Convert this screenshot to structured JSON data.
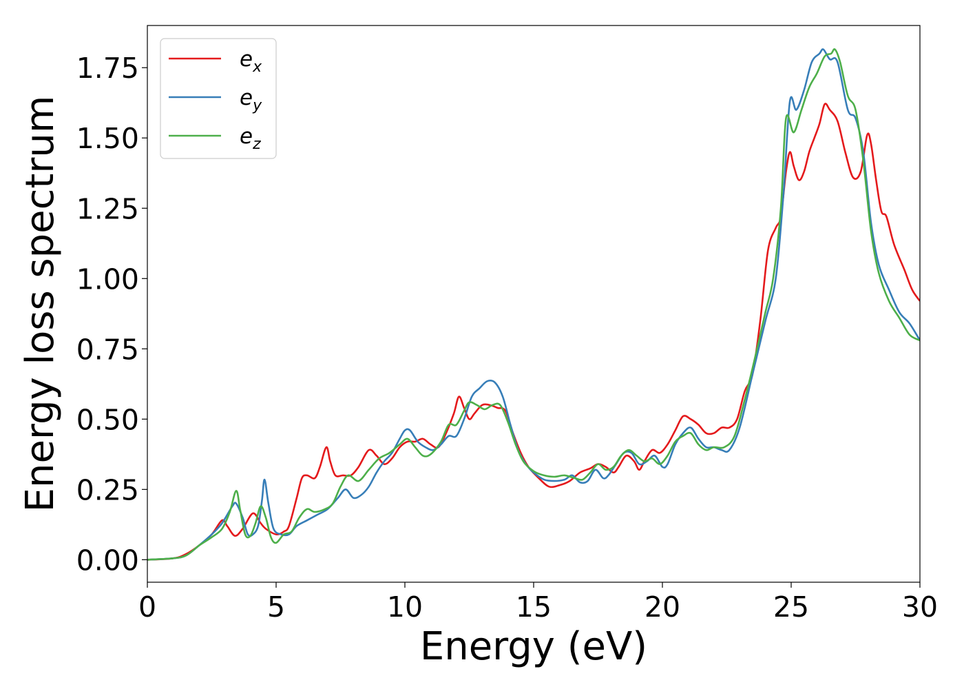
{
  "chart_data": {
    "type": "line",
    "xlabel": "Energy (eV)",
    "ylabel": "Energy loss spectrum",
    "xlim": [
      0,
      30
    ],
    "ylim": [
      -0.08,
      1.9
    ],
    "xticks": [
      0,
      5,
      10,
      15,
      20,
      25,
      30
    ],
    "xtick_labels": [
      "0",
      "5",
      "10",
      "15",
      "20",
      "25",
      "30"
    ],
    "yticks": [
      0.0,
      0.25,
      0.5,
      0.75,
      1.0,
      1.25,
      1.5,
      1.75
    ],
    "ytick_labels": [
      "0.00",
      "0.25",
      "0.50",
      "0.75",
      "1.00",
      "1.25",
      "1.50",
      "1.75"
    ],
    "grid": false,
    "legend_position": "top-left",
    "series": [
      {
        "name": "e",
        "subscript": "x",
        "color": "#e41a1c",
        "points": [
          [
            0,
            0
          ],
          [
            1,
            0.005
          ],
          [
            1.5,
            0.02
          ],
          [
            2,
            0.05
          ],
          [
            2.5,
            0.09
          ],
          [
            2.9,
            0.14
          ],
          [
            3.1,
            0.12
          ],
          [
            3.4,
            0.085
          ],
          [
            3.7,
            0.11
          ],
          [
            4.1,
            0.165
          ],
          [
            4.4,
            0.13
          ],
          [
            4.6,
            0.11
          ],
          [
            5,
            0.09
          ],
          [
            5.3,
            0.1
          ],
          [
            5.5,
            0.12
          ],
          [
            5.8,
            0.22
          ],
          [
            6,
            0.29
          ],
          [
            6.2,
            0.3
          ],
          [
            6.5,
            0.29
          ],
          [
            6.7,
            0.33
          ],
          [
            6.95,
            0.4
          ],
          [
            7.1,
            0.35
          ],
          [
            7.3,
            0.3
          ],
          [
            7.6,
            0.3
          ],
          [
            7.9,
            0.3
          ],
          [
            8.2,
            0.33
          ],
          [
            8.6,
            0.39
          ],
          [
            8.9,
            0.37
          ],
          [
            9.2,
            0.34
          ],
          [
            9.5,
            0.36
          ],
          [
            9.8,
            0.4
          ],
          [
            10.1,
            0.42
          ],
          [
            10.4,
            0.42
          ],
          [
            10.7,
            0.43
          ],
          [
            11,
            0.41
          ],
          [
            11.3,
            0.4
          ],
          [
            11.6,
            0.45
          ],
          [
            11.9,
            0.52
          ],
          [
            12.1,
            0.58
          ],
          [
            12.3,
            0.54
          ],
          [
            12.5,
            0.5
          ],
          [
            12.7,
            0.52
          ],
          [
            13,
            0.55
          ],
          [
            13.3,
            0.55
          ],
          [
            13.6,
            0.54
          ],
          [
            13.9,
            0.53
          ],
          [
            14.2,
            0.45
          ],
          [
            14.5,
            0.38
          ],
          [
            14.8,
            0.33
          ],
          [
            15.2,
            0.29
          ],
          [
            15.6,
            0.26
          ],
          [
            16,
            0.265
          ],
          [
            16.4,
            0.28
          ],
          [
            16.8,
            0.31
          ],
          [
            17.2,
            0.325
          ],
          [
            17.5,
            0.34
          ],
          [
            17.8,
            0.33
          ],
          [
            18.1,
            0.31
          ],
          [
            18.3,
            0.33
          ],
          [
            18.6,
            0.37
          ],
          [
            18.9,
            0.35
          ],
          [
            19.1,
            0.32
          ],
          [
            19.3,
            0.35
          ],
          [
            19.6,
            0.39
          ],
          [
            19.9,
            0.38
          ],
          [
            20.2,
            0.41
          ],
          [
            20.5,
            0.46
          ],
          [
            20.8,
            0.51
          ],
          [
            21.1,
            0.5
          ],
          [
            21.4,
            0.48
          ],
          [
            21.7,
            0.45
          ],
          [
            22,
            0.45
          ],
          [
            22.3,
            0.47
          ],
          [
            22.6,
            0.47
          ],
          [
            22.9,
            0.5
          ],
          [
            23.2,
            0.6
          ],
          [
            23.5,
            0.66
          ],
          [
            23.8,
            0.85
          ],
          [
            24.1,
            1.1
          ],
          [
            24.4,
            1.18
          ],
          [
            24.6,
            1.22
          ],
          [
            24.8,
            1.38
          ],
          [
            24.95,
            1.45
          ],
          [
            25.1,
            1.4
          ],
          [
            25.3,
            1.35
          ],
          [
            25.5,
            1.38
          ],
          [
            25.7,
            1.45
          ],
          [
            25.9,
            1.5
          ],
          [
            26.1,
            1.55
          ],
          [
            26.3,
            1.62
          ],
          [
            26.5,
            1.6
          ],
          [
            26.8,
            1.56
          ],
          [
            27.1,
            1.45
          ],
          [
            27.4,
            1.36
          ],
          [
            27.7,
            1.38
          ],
          [
            27.95,
            1.51
          ],
          [
            28.1,
            1.48
          ],
          [
            28.3,
            1.35
          ],
          [
            28.5,
            1.24
          ],
          [
            28.7,
            1.22
          ],
          [
            29,
            1.12
          ],
          [
            29.4,
            1.03
          ],
          [
            29.7,
            0.96
          ],
          [
            30,
            0.92
          ]
        ]
      },
      {
        "name": "e",
        "subscript": "y",
        "color": "#377eb8",
        "points": [
          [
            0,
            0
          ],
          [
            1,
            0.005
          ],
          [
            1.5,
            0.015
          ],
          [
            2,
            0.05
          ],
          [
            2.5,
            0.09
          ],
          [
            2.9,
            0.13
          ],
          [
            3.3,
            0.19
          ],
          [
            3.45,
            0.2
          ],
          [
            3.7,
            0.15
          ],
          [
            3.9,
            0.09
          ],
          [
            4.1,
            0.09
          ],
          [
            4.3,
            0.12
          ],
          [
            4.45,
            0.21
          ],
          [
            4.55,
            0.285
          ],
          [
            4.7,
            0.2
          ],
          [
            4.9,
            0.11
          ],
          [
            5.2,
            0.09
          ],
          [
            5.5,
            0.09
          ],
          [
            5.8,
            0.12
          ],
          [
            6.2,
            0.14
          ],
          [
            6.6,
            0.16
          ],
          [
            7,
            0.18
          ],
          [
            7.4,
            0.22
          ],
          [
            7.7,
            0.25
          ],
          [
            8,
            0.22
          ],
          [
            8.3,
            0.23
          ],
          [
            8.6,
            0.26
          ],
          [
            8.9,
            0.31
          ],
          [
            9.2,
            0.35
          ],
          [
            9.5,
            0.38
          ],
          [
            9.8,
            0.43
          ],
          [
            10,
            0.46
          ],
          [
            10.2,
            0.46
          ],
          [
            10.5,
            0.42
          ],
          [
            10.8,
            0.4
          ],
          [
            11.1,
            0.39
          ],
          [
            11.4,
            0.41
          ],
          [
            11.7,
            0.44
          ],
          [
            12,
            0.44
          ],
          [
            12.3,
            0.5
          ],
          [
            12.6,
            0.58
          ],
          [
            12.9,
            0.61
          ],
          [
            13.2,
            0.635
          ],
          [
            13.5,
            0.63
          ],
          [
            13.8,
            0.58
          ],
          [
            14.1,
            0.48
          ],
          [
            14.4,
            0.39
          ],
          [
            14.7,
            0.34
          ],
          [
            15,
            0.31
          ],
          [
            15.4,
            0.285
          ],
          [
            15.8,
            0.28
          ],
          [
            16.2,
            0.285
          ],
          [
            16.5,
            0.3
          ],
          [
            16.8,
            0.275
          ],
          [
            17.1,
            0.28
          ],
          [
            17.4,
            0.32
          ],
          [
            17.7,
            0.29
          ],
          [
            17.9,
            0.3
          ],
          [
            18.2,
            0.34
          ],
          [
            18.5,
            0.38
          ],
          [
            18.8,
            0.38
          ],
          [
            19.1,
            0.34
          ],
          [
            19.4,
            0.35
          ],
          [
            19.7,
            0.37
          ],
          [
            20,
            0.33
          ],
          [
            20.2,
            0.34
          ],
          [
            20.5,
            0.41
          ],
          [
            20.8,
            0.45
          ],
          [
            21.1,
            0.47
          ],
          [
            21.4,
            0.43
          ],
          [
            21.7,
            0.4
          ],
          [
            22,
            0.4
          ],
          [
            22.3,
            0.39
          ],
          [
            22.6,
            0.39
          ],
          [
            23,
            0.47
          ],
          [
            23.5,
            0.66
          ],
          [
            24,
            0.85
          ],
          [
            24.4,
            1.0
          ],
          [
            24.7,
            1.3
          ],
          [
            24.95,
            1.63
          ],
          [
            25.2,
            1.6
          ],
          [
            25.5,
            1.67
          ],
          [
            25.8,
            1.77
          ],
          [
            26.1,
            1.8
          ],
          [
            26.25,
            1.815
          ],
          [
            26.5,
            1.78
          ],
          [
            26.8,
            1.77
          ],
          [
            27.2,
            1.6
          ],
          [
            27.5,
            1.57
          ],
          [
            27.8,
            1.45
          ],
          [
            28.1,
            1.2
          ],
          [
            28.4,
            1.05
          ],
          [
            28.8,
            0.96
          ],
          [
            29.2,
            0.88
          ],
          [
            29.6,
            0.84
          ],
          [
            30,
            0.78
          ]
        ]
      },
      {
        "name": "e",
        "subscript": "z",
        "color": "#4daf4a",
        "points": [
          [
            0,
            0
          ],
          [
            1,
            0.005
          ],
          [
            1.5,
            0.015
          ],
          [
            2,
            0.05
          ],
          [
            2.5,
            0.08
          ],
          [
            2.9,
            0.11
          ],
          [
            3.2,
            0.17
          ],
          [
            3.45,
            0.245
          ],
          [
            3.6,
            0.18
          ],
          [
            3.8,
            0.09
          ],
          [
            4,
            0.085
          ],
          [
            4.2,
            0.13
          ],
          [
            4.4,
            0.19
          ],
          [
            4.6,
            0.15
          ],
          [
            4.8,
            0.08
          ],
          [
            5,
            0.06
          ],
          [
            5.3,
            0.09
          ],
          [
            5.6,
            0.1
          ],
          [
            5.9,
            0.15
          ],
          [
            6.2,
            0.18
          ],
          [
            6.5,
            0.17
          ],
          [
            6.9,
            0.18
          ],
          [
            7.2,
            0.2
          ],
          [
            7.5,
            0.26
          ],
          [
            7.8,
            0.3
          ],
          [
            8.2,
            0.28
          ],
          [
            8.6,
            0.32
          ],
          [
            9,
            0.36
          ],
          [
            9.4,
            0.38
          ],
          [
            9.8,
            0.41
          ],
          [
            10.1,
            0.43
          ],
          [
            10.4,
            0.4
          ],
          [
            10.7,
            0.37
          ],
          [
            11,
            0.375
          ],
          [
            11.4,
            0.42
          ],
          [
            11.7,
            0.48
          ],
          [
            12,
            0.48
          ],
          [
            12.3,
            0.53
          ],
          [
            12.5,
            0.56
          ],
          [
            12.8,
            0.55
          ],
          [
            13.1,
            0.535
          ],
          [
            13.4,
            0.55
          ],
          [
            13.7,
            0.55
          ],
          [
            14,
            0.49
          ],
          [
            14.3,
            0.41
          ],
          [
            14.6,
            0.35
          ],
          [
            15,
            0.315
          ],
          [
            15.4,
            0.3
          ],
          [
            15.8,
            0.295
          ],
          [
            16.2,
            0.3
          ],
          [
            16.6,
            0.29
          ],
          [
            16.9,
            0.285
          ],
          [
            17.2,
            0.31
          ],
          [
            17.5,
            0.34
          ],
          [
            17.8,
            0.32
          ],
          [
            18.1,
            0.33
          ],
          [
            18.4,
            0.37
          ],
          [
            18.7,
            0.39
          ],
          [
            19,
            0.37
          ],
          [
            19.3,
            0.35
          ],
          [
            19.6,
            0.36
          ],
          [
            19.9,
            0.34
          ],
          [
            20.2,
            0.37
          ],
          [
            20.5,
            0.42
          ],
          [
            20.8,
            0.44
          ],
          [
            21.1,
            0.45
          ],
          [
            21.4,
            0.41
          ],
          [
            21.7,
            0.39
          ],
          [
            22,
            0.4
          ],
          [
            22.4,
            0.4
          ],
          [
            22.8,
            0.44
          ],
          [
            23.2,
            0.57
          ],
          [
            23.6,
            0.72
          ],
          [
            24,
            0.88
          ],
          [
            24.3,
            1.0
          ],
          [
            24.6,
            1.25
          ],
          [
            24.8,
            1.57
          ],
          [
            25.1,
            1.52
          ],
          [
            25.4,
            1.6
          ],
          [
            25.7,
            1.68
          ],
          [
            26,
            1.73
          ],
          [
            26.3,
            1.79
          ],
          [
            26.55,
            1.8
          ],
          [
            26.7,
            1.815
          ],
          [
            26.9,
            1.77
          ],
          [
            27.2,
            1.65
          ],
          [
            27.5,
            1.6
          ],
          [
            27.8,
            1.42
          ],
          [
            28.1,
            1.17
          ],
          [
            28.4,
            1.02
          ],
          [
            28.8,
            0.92
          ],
          [
            29.2,
            0.86
          ],
          [
            29.6,
            0.8
          ],
          [
            30,
            0.78
          ]
        ]
      }
    ]
  }
}
